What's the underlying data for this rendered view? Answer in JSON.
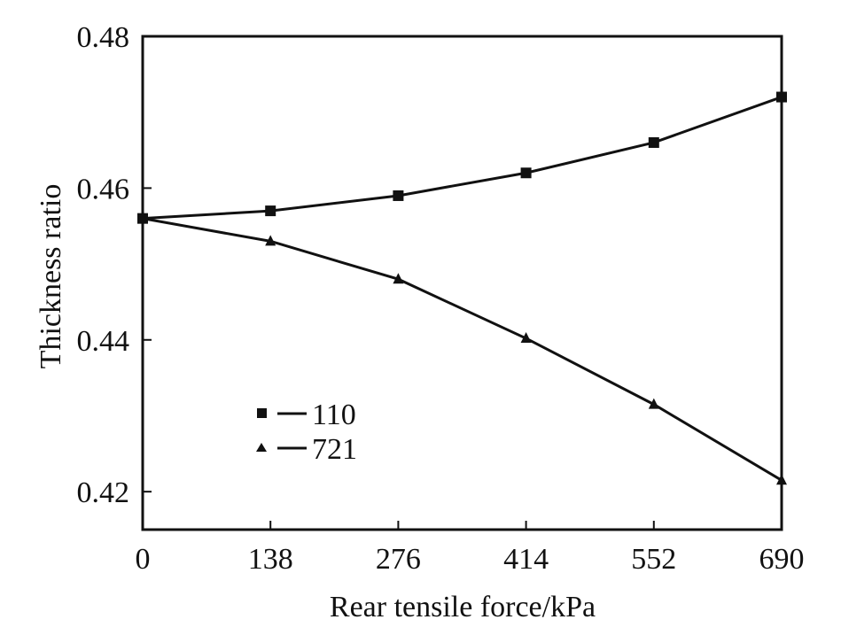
{
  "chart_data": {
    "type": "line",
    "xlabel": "Rear tensile force/kPa",
    "ylabel": "Thickness ratio",
    "x": [
      0,
      138,
      276,
      414,
      552,
      690
    ],
    "x_tick_labels": [
      "0",
      "138",
      "276",
      "414",
      "552",
      "690"
    ],
    "y_tick_labels": [
      "0.42",
      "0.44",
      "0.46",
      "0.48"
    ],
    "xlim": [
      0,
      690
    ],
    "ylim": [
      0.415,
      0.48
    ],
    "grid": false,
    "legend_position": "left-center",
    "series": [
      {
        "name": "110",
        "marker": "square",
        "values": [
          0.456,
          0.457,
          0.459,
          0.462,
          0.466,
          0.472
        ]
      },
      {
        "name": "721",
        "marker": "triangle",
        "values": [
          0.456,
          0.453,
          0.448,
          0.4402,
          0.4315,
          0.4215
        ]
      }
    ]
  },
  "colors": {
    "line": "#111111",
    "background": "#ffffff"
  }
}
